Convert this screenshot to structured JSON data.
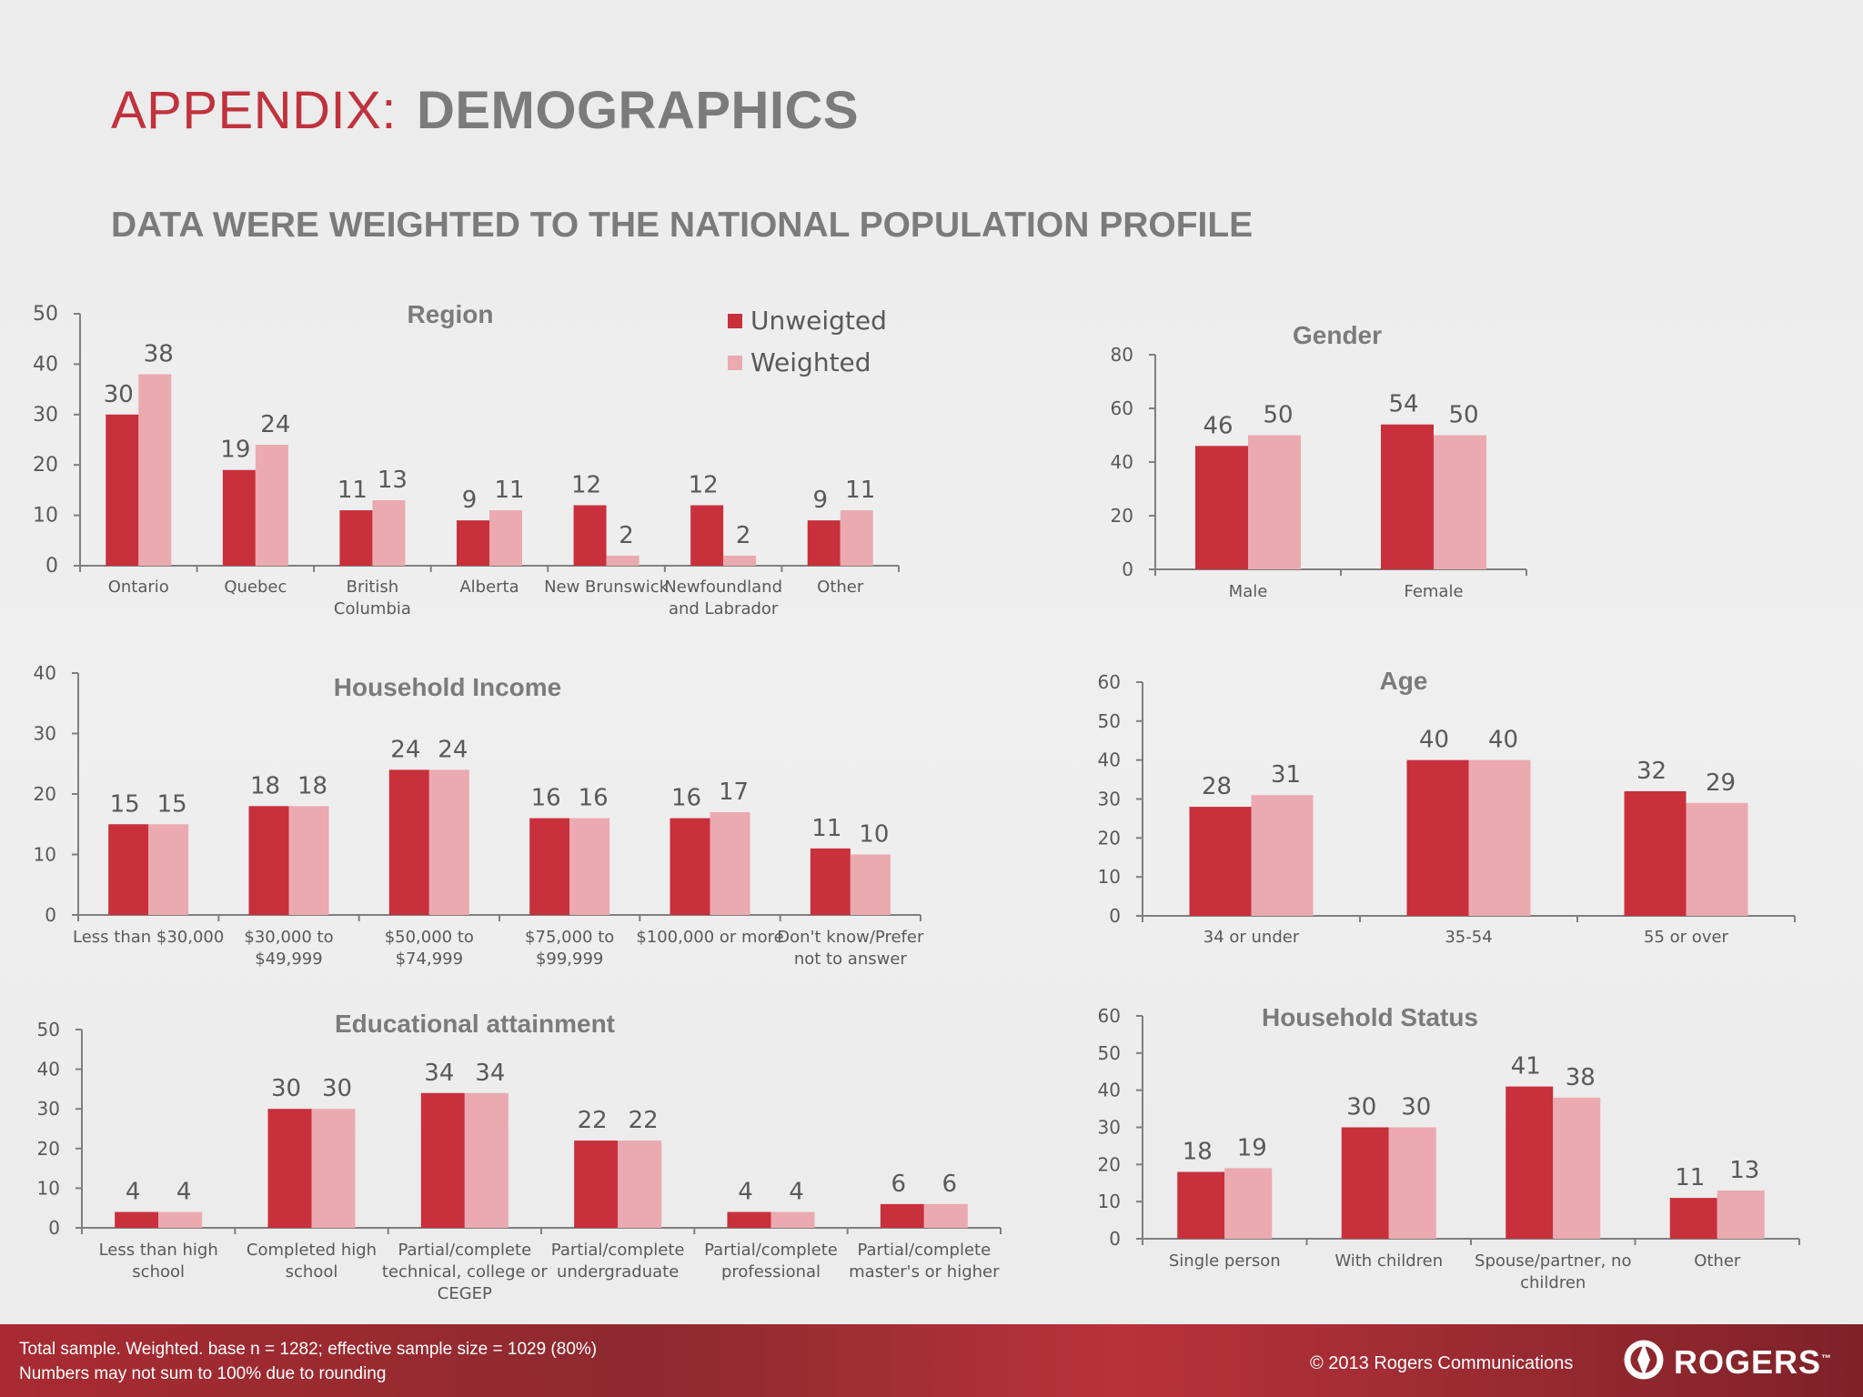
{
  "header": {
    "title_red": "APPENDIX:",
    "title_gray": "DEMOGRAPHICS",
    "subtitle": "DATA WERE WEIGHTED TO THE NATIONAL POPULATION PROFILE"
  },
  "colors": {
    "unweighted": "#c8303c",
    "weighted": "#eaaab0",
    "axis": "#7f7f7f",
    "text": "#595959",
    "title": "#7b7b7b"
  },
  "chart_data": [
    {
      "id": "region",
      "type": "bar",
      "title": "Region",
      "categories": [
        "Ontario",
        "Quebec",
        "British\nColumbia",
        "Alberta",
        "New Brunswick",
        "Newfoundland\nand Labrador",
        "Other"
      ],
      "series": [
        {
          "name": "Unweigted",
          "values": [
            30,
            19,
            11,
            9,
            12,
            12,
            9
          ]
        },
        {
          "name": "Weighted",
          "values": [
            38,
            24,
            13,
            11,
            2,
            2,
            11
          ]
        }
      ],
      "ylim": [
        0,
        50
      ],
      "yticks": [
        0,
        10,
        20,
        30,
        40,
        50
      ],
      "legend": "top-right"
    },
    {
      "id": "gender",
      "type": "bar",
      "title": "Gender",
      "categories": [
        "Male",
        "Female"
      ],
      "series": [
        {
          "name": "Unweigted",
          "values": [
            46,
            54
          ]
        },
        {
          "name": "Weighted",
          "values": [
            50,
            50
          ]
        }
      ],
      "ylim": [
        0,
        80
      ],
      "yticks": [
        0,
        20,
        40,
        60,
        80
      ]
    },
    {
      "id": "income",
      "type": "bar",
      "title": "Household Income",
      "categories": [
        "Less than $30,000",
        "$30,000 to\n$49,999",
        "$50,000 to\n$74,999",
        "$75,000 to\n$99,999",
        "$100,000 or more",
        "Don't know/Prefer\nnot to answer"
      ],
      "series": [
        {
          "name": "Unweigted",
          "values": [
            15,
            18,
            24,
            16,
            16,
            11
          ]
        },
        {
          "name": "Weighted",
          "values": [
            15,
            18,
            24,
            16,
            17,
            10
          ]
        }
      ],
      "ylim": [
        0,
        40
      ],
      "yticks": [
        0,
        10,
        20,
        30,
        40
      ]
    },
    {
      "id": "age",
      "type": "bar",
      "title": "Age",
      "categories": [
        "34 or under",
        "35-54",
        "55 or over"
      ],
      "series": [
        {
          "name": "Unweigted",
          "values": [
            28,
            40,
            32
          ]
        },
        {
          "name": "Weighted",
          "values": [
            31,
            40,
            29
          ]
        }
      ],
      "ylim": [
        0,
        60
      ],
      "yticks": [
        0,
        10,
        20,
        30,
        40,
        50,
        60
      ]
    },
    {
      "id": "education",
      "type": "bar",
      "title": "Educational attainment",
      "categories": [
        "Less than high\nschool",
        "Completed high\nschool",
        "Partial/complete\ntechnical, college or\nCEGEP",
        "Partial/complete\nundergraduate",
        "Partial/complete\nprofessional",
        "Partial/complete\nmaster's or higher"
      ],
      "series": [
        {
          "name": "Unweigted",
          "values": [
            4,
            30,
            34,
            22,
            4,
            6
          ]
        },
        {
          "name": "Weighted",
          "values": [
            4,
            30,
            34,
            22,
            4,
            6
          ]
        }
      ],
      "ylim": [
        0,
        50
      ],
      "yticks": [
        0,
        10,
        20,
        30,
        40,
        50
      ]
    },
    {
      "id": "household",
      "type": "bar",
      "title": "Household Status",
      "categories": [
        "Single person",
        "With children",
        "Spouse/partner, no\nchildren",
        "Other"
      ],
      "series": [
        {
          "name": "Unweigted",
          "values": [
            18,
            30,
            41,
            11
          ]
        },
        {
          "name": "Weighted",
          "values": [
            19,
            30,
            38,
            13
          ]
        }
      ],
      "ylim": [
        0,
        60
      ],
      "yticks": [
        0,
        10,
        20,
        30,
        40,
        50,
        60
      ]
    }
  ],
  "footer": {
    "note1": "Total sample. Weighted. base n = 1282; effective sample size = 1029 (80%)",
    "note2": "Numbers may not sum to 100% due to rounding",
    "copyright": "© 2013 Rogers Communications",
    "logo_text": "ROGERS",
    "logo_tm": "™"
  }
}
